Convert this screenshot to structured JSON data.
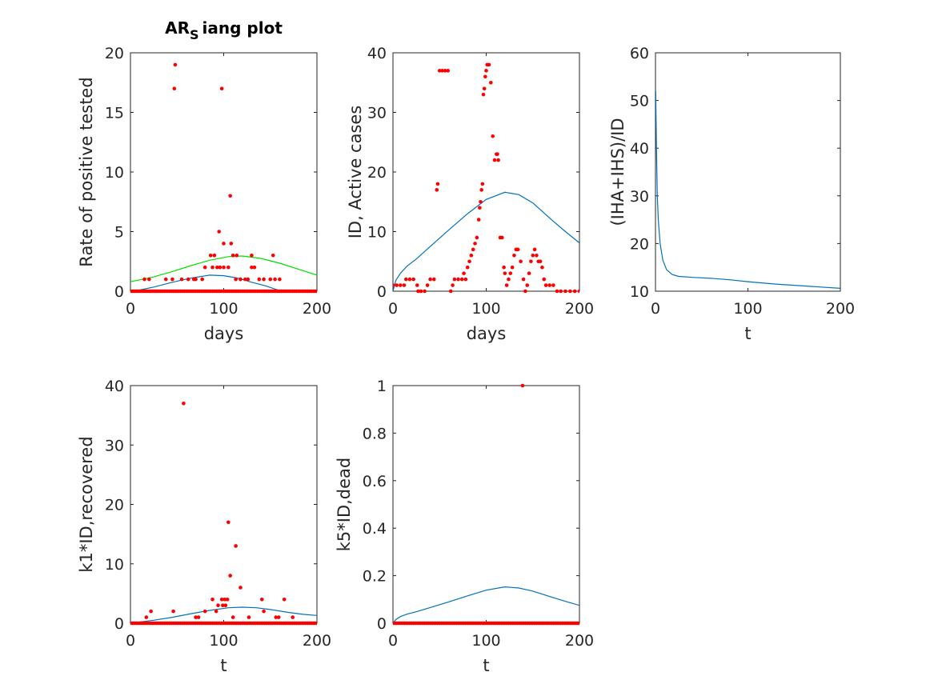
{
  "chart_data": [
    {
      "type": "scatter",
      "title_main": "AR",
      "title_sub": "S",
      "title_rest": "iang plot",
      "xlabel": "days",
      "ylabel": "Rate of positive tested",
      "xlim": [
        0,
        200
      ],
      "ylim": [
        0,
        20
      ],
      "xticks": [
        "0",
        "100",
        "200"
      ],
      "yticks": [
        "0",
        "5",
        "10",
        "15",
        "20"
      ],
      "colors": {
        "points": "#ff0000",
        "curve": "#0072bd",
        "curve2": "#00e000"
      },
      "points": [
        [
          47,
          17
        ],
        [
          48,
          19
        ],
        [
          98,
          17
        ],
        [
          107,
          8
        ],
        [
          95,
          5
        ],
        [
          86,
          3
        ],
        [
          90,
          3
        ],
        [
          108,
          4
        ],
        [
          114,
          3
        ],
        [
          100,
          4
        ],
        [
          110,
          3
        ],
        [
          130,
          3
        ],
        [
          153,
          3
        ],
        [
          15,
          1
        ],
        [
          20,
          1
        ],
        [
          38,
          1
        ],
        [
          45,
          1
        ],
        [
          55,
          1
        ],
        [
          62,
          1
        ],
        [
          68,
          1
        ],
        [
          70,
          1
        ],
        [
          77,
          1
        ],
        [
          80,
          2
        ],
        [
          88,
          2
        ],
        [
          93,
          2
        ],
        [
          96,
          2
        ],
        [
          100,
          2
        ],
        [
          105,
          2
        ],
        [
          113,
          1
        ],
        [
          118,
          1
        ],
        [
          123,
          1
        ],
        [
          126,
          1
        ],
        [
          130,
          2
        ],
        [
          133,
          2
        ],
        [
          138,
          1
        ],
        [
          143,
          1
        ],
        [
          150,
          1
        ],
        [
          155,
          1
        ],
        [
          160,
          1
        ]
      ],
      "zero_points": {
        "from": 0,
        "to": 200,
        "step": 2
      },
      "series": [
        {
          "values": [
            [
              0,
              0
            ],
            [
              10,
              0.1
            ],
            [
              25,
              0.35
            ],
            [
              45,
              0.75
            ],
            [
              65,
              1.1
            ],
            [
              85,
              1.35
            ],
            [
              100,
              1.3
            ],
            [
              115,
              1.1
            ],
            [
              130,
              0.75
            ],
            [
              145,
              0.45
            ],
            [
              160,
              0.05
            ],
            [
              165,
              0
            ],
            [
              200,
              0
            ]
          ]
        },
        {
          "values": [
            [
              0,
              0.8
            ],
            [
              10,
              0.95
            ],
            [
              25,
              1.2
            ],
            [
              45,
              1.65
            ],
            [
              65,
              2.15
            ],
            [
              85,
              2.6
            ],
            [
              105,
              2.9
            ],
            [
              120,
              2.95
            ],
            [
              140,
              2.75
            ],
            [
              160,
              2.35
            ],
            [
              180,
              1.85
            ],
            [
              200,
              1.35
            ]
          ]
        }
      ]
    },
    {
      "type": "scatter",
      "xlabel": "days",
      "ylabel": "ID, Active cases",
      "xlim": [
        0,
        200
      ],
      "ylim": [
        0,
        40
      ],
      "xticks": [
        "0",
        "100",
        "200"
      ],
      "yticks": [
        "0",
        "10",
        "20",
        "30",
        "40"
      ],
      "colors": {
        "points": "#ff0000",
        "curve": "#0072bd"
      },
      "points": [
        [
          0,
          1
        ],
        [
          4,
          1
        ],
        [
          8,
          1
        ],
        [
          12,
          1
        ],
        [
          14,
          2
        ],
        [
          18,
          2
        ],
        [
          22,
          2
        ],
        [
          26,
          1
        ],
        [
          27,
          0
        ],
        [
          30,
          0
        ],
        [
          34,
          0
        ],
        [
          37,
          1
        ],
        [
          40,
          2
        ],
        [
          44,
          2
        ],
        [
          47,
          17
        ],
        [
          48,
          18
        ],
        [
          50,
          37
        ],
        [
          53,
          37
        ],
        [
          56,
          37
        ],
        [
          59,
          37
        ],
        [
          62,
          0
        ],
        [
          64,
          1
        ],
        [
          66,
          2
        ],
        [
          70,
          2
        ],
        [
          74,
          2
        ],
        [
          76,
          3
        ],
        [
          78,
          2
        ],
        [
          80,
          4
        ],
        [
          82,
          5
        ],
        [
          84,
          6
        ],
        [
          86,
          7
        ],
        [
          88,
          8
        ],
        [
          90,
          9
        ],
        [
          92,
          12
        ],
        [
          93,
          14
        ],
        [
          94,
          15
        ],
        [
          95,
          17
        ],
        [
          96,
          18
        ],
        [
          97,
          33
        ],
        [
          98,
          34
        ],
        [
          99,
          36
        ],
        [
          100,
          37
        ],
        [
          101,
          38
        ],
        [
          103,
          38
        ],
        [
          105,
          35
        ],
        [
          107,
          26
        ],
        [
          109,
          22
        ],
        [
          111,
          23
        ],
        [
          112,
          23
        ],
        [
          113,
          22
        ],
        [
          115,
          9
        ],
        [
          117,
          9
        ],
        [
          119,
          4
        ],
        [
          120,
          3
        ],
        [
          122,
          1
        ],
        [
          124,
          2
        ],
        [
          126,
          3
        ],
        [
          128,
          4
        ],
        [
          130,
          6
        ],
        [
          132,
          7
        ],
        [
          134,
          7
        ],
        [
          137,
          5
        ],
        [
          140,
          2
        ],
        [
          142,
          0
        ],
        [
          144,
          1
        ],
        [
          146,
          3
        ],
        [
          148,
          5
        ],
        [
          150,
          6
        ],
        [
          152,
          7
        ],
        [
          154,
          6
        ],
        [
          156,
          5
        ],
        [
          158,
          5
        ],
        [
          160,
          4
        ],
        [
          162,
          2
        ],
        [
          164,
          1
        ],
        [
          168,
          1
        ],
        [
          172,
          1
        ],
        [
          176,
          0
        ],
        [
          180,
          0
        ],
        [
          185,
          0
        ],
        [
          190,
          0
        ],
        [
          195,
          0
        ],
        [
          200,
          0
        ]
      ],
      "series": [
        {
          "values": [
            [
              0,
              0
            ],
            [
              3,
              1.8
            ],
            [
              8,
              3
            ],
            [
              15,
              4.2
            ],
            [
              25,
              5.4
            ],
            [
              40,
              7.5
            ],
            [
              60,
              10.3
            ],
            [
              80,
              13
            ],
            [
              100,
              15.4
            ],
            [
              120,
              16.6
            ],
            [
              135,
              16.2
            ],
            [
              150,
              14.8
            ],
            [
              170,
              12
            ],
            [
              185,
              10
            ],
            [
              200,
              8.1
            ]
          ]
        }
      ]
    },
    {
      "type": "line",
      "xlabel": "t",
      "ylabel": "(IHA+IHS)/ID",
      "xlim": [
        0,
        200
      ],
      "ylim": [
        10,
        60
      ],
      "xticks": [
        "0",
        "100",
        "200"
      ],
      "yticks": [
        "10",
        "20",
        "30",
        "40",
        "50",
        "60"
      ],
      "colors": {
        "curve": "#0072bd"
      },
      "series": [
        {
          "values": [
            [
              0.3,
              52
            ],
            [
              1,
              40
            ],
            [
              2,
              30
            ],
            [
              3,
              25
            ],
            [
              5,
              20
            ],
            [
              8,
              16.5
            ],
            [
              12,
              14.5
            ],
            [
              18,
              13.5
            ],
            [
              25,
              13.1
            ],
            [
              40,
              12.9
            ],
            [
              60,
              12.7
            ],
            [
              80,
              12.4
            ],
            [
              100,
              12
            ],
            [
              130,
              11.5
            ],
            [
              160,
              11.1
            ],
            [
              200,
              10.6
            ]
          ]
        }
      ]
    },
    {
      "type": "scatter",
      "xlabel": "t",
      "ylabel": "k1*ID,recovered",
      "xlim": [
        0,
        200
      ],
      "ylim": [
        0,
        40
      ],
      "xticks": [
        "0",
        "100",
        "200"
      ],
      "yticks": [
        "0",
        "10",
        "20",
        "30",
        "40"
      ],
      "colors": {
        "points": "#ff0000",
        "curve": "#0072bd"
      },
      "points": [
        [
          57,
          37
        ],
        [
          105,
          17
        ],
        [
          113,
          13
        ],
        [
          107,
          8
        ],
        [
          118,
          6
        ],
        [
          98,
          4
        ],
        [
          101,
          4
        ],
        [
          104,
          4
        ],
        [
          88,
          4
        ],
        [
          94,
          3
        ],
        [
          99,
          3
        ],
        [
          102,
          3
        ],
        [
          141,
          4
        ],
        [
          165,
          4
        ],
        [
          80,
          2
        ],
        [
          92,
          2
        ],
        [
          143,
          2
        ],
        [
          22,
          2
        ],
        [
          46,
          2
        ],
        [
          17,
          1
        ],
        [
          70,
          1
        ],
        [
          73,
          1
        ],
        [
          110,
          1
        ],
        [
          127,
          1
        ],
        [
          156,
          1
        ],
        [
          159,
          1
        ],
        [
          174,
          1
        ]
      ],
      "zero_points": {
        "from": 0,
        "to": 200,
        "step": 2
      },
      "series": [
        {
          "values": [
            [
              0,
              0
            ],
            [
              10,
              0.2
            ],
            [
              25,
              0.5
            ],
            [
              45,
              1
            ],
            [
              65,
              1.6
            ],
            [
              85,
              2.15
            ],
            [
              105,
              2.6
            ],
            [
              120,
              2.7
            ],
            [
              135,
              2.6
            ],
            [
              150,
              2.3
            ],
            [
              170,
              1.8
            ],
            [
              185,
              1.5
            ],
            [
              200,
              1.3
            ]
          ]
        }
      ]
    },
    {
      "type": "scatter",
      "xlabel": "t",
      "ylabel": "k5*ID,dead",
      "xlim": [
        0,
        200
      ],
      "ylim": [
        0,
        1
      ],
      "xticks": [
        "0",
        "100",
        "200"
      ],
      "yticks": [
        "0",
        "0.2",
        "0.4",
        "0.6",
        "0.8",
        "1"
      ],
      "colors": {
        "points": "#ff0000",
        "curve": "#0072bd"
      },
      "points": [
        [
          139,
          1
        ]
      ],
      "zero_points": {
        "from": 0,
        "to": 200,
        "step": 2
      },
      "series": [
        {
          "values": [
            [
              0,
              0
            ],
            [
              3,
              0.015
            ],
            [
              8,
              0.028
            ],
            [
              15,
              0.038
            ],
            [
              25,
              0.048
            ],
            [
              40,
              0.066
            ],
            [
              60,
              0.09
            ],
            [
              80,
              0.115
            ],
            [
              100,
              0.139
            ],
            [
              120,
              0.153
            ],
            [
              135,
              0.148
            ],
            [
              150,
              0.135
            ],
            [
              170,
              0.11
            ],
            [
              185,
              0.092
            ],
            [
              200,
              0.075
            ]
          ]
        }
      ]
    }
  ]
}
